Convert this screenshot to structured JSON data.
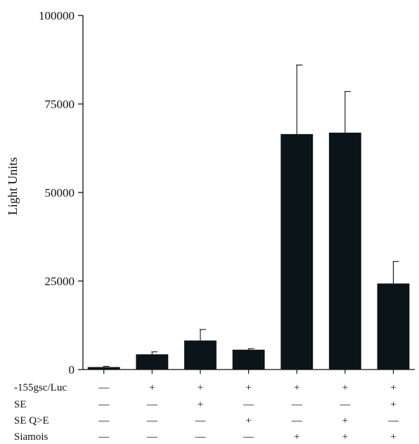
{
  "chart_data": {
    "type": "bar",
    "title": "",
    "xlabel": "",
    "ylabel": "Light Units",
    "ylim": [
      0,
      100000
    ],
    "yticks": [
      0,
      25000,
      50000,
      75000,
      100000
    ],
    "ytick_labels": [
      "0",
      "25000",
      "50000",
      "75000",
      "100000"
    ],
    "grid": false,
    "bar_color": "#0b1418",
    "values": [
      700,
      4300,
      8200,
      5600,
      66500,
      66900,
      24300
    ],
    "error_upper": [
      900,
      5000,
      11300,
      5900,
      86000,
      78500,
      30500
    ],
    "conditions": [
      {
        "label": "-155gsc/Luc",
        "marks": [
          "—",
          "+",
          "+",
          "+",
          "+",
          "+",
          "+"
        ]
      },
      {
        "label": "SE",
        "marks": [
          "—",
          "—",
          "+",
          "—",
          "—",
          "—",
          "+"
        ]
      },
      {
        "label": "SE Q>E",
        "marks": [
          "—",
          "—",
          "—",
          "+",
          "—",
          "+",
          "—"
        ]
      },
      {
        "label": "Siamois",
        "marks": [
          "—",
          "—",
          "—",
          "—",
          "+",
          "+",
          "+"
        ]
      }
    ]
  }
}
